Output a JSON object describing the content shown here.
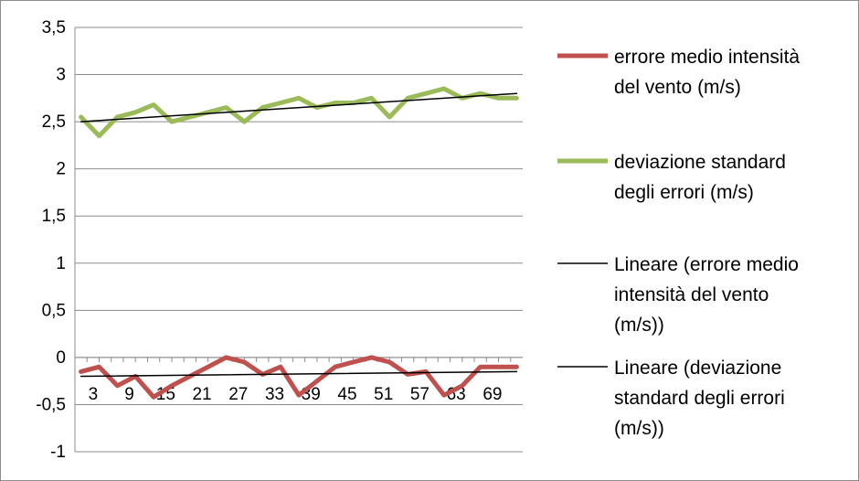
{
  "chart_data": {
    "type": "line",
    "title": "",
    "xlabel": "",
    "ylabel": "",
    "x": [
      1,
      3,
      5,
      7,
      9,
      11,
      13,
      15,
      17,
      19,
      21,
      23,
      25,
      27,
      29,
      31,
      33,
      35,
      37,
      39,
      41,
      43,
      45,
      47,
      49,
      51,
      53,
      55,
      57,
      59,
      61,
      63,
      65,
      67,
      69,
      71,
      73
    ],
    "x_tick_labels": [
      "3",
      "9",
      "15",
      "21",
      "27",
      "33",
      "39",
      "45",
      "51",
      "57",
      "63",
      "69"
    ],
    "x_tick_values": [
      3,
      9,
      15,
      21,
      27,
      33,
      39,
      45,
      51,
      57,
      63,
      69
    ],
    "y_tick_labels": [
      "3,5",
      "3",
      "2,5",
      "2",
      "1,5",
      "1",
      "0,5",
      "0",
      "-0,5",
      "-1"
    ],
    "ylim": [
      -1,
      3.5
    ],
    "y_step": 0.5,
    "grid": true,
    "legend_position": "right",
    "series": [
      {
        "name": "errore medio intensità del vento (m/s)",
        "legend_lines": [
          "errore medio intensità",
          "del vento (m/s)"
        ],
        "color": "#c0504d",
        "style": "thick",
        "x": [
          1,
          4,
          7,
          10,
          13,
          16,
          19,
          22,
          25,
          28,
          31,
          34,
          37,
          40,
          43,
          46,
          49,
          52,
          55,
          58,
          61,
          64,
          67,
          70,
          73
        ],
        "values": [
          -0.15,
          -0.1,
          -0.3,
          -0.2,
          -0.42,
          -0.3,
          -0.2,
          -0.1,
          0.0,
          -0.05,
          -0.18,
          -0.1,
          -0.4,
          -0.25,
          -0.1,
          -0.05,
          0.0,
          -0.05,
          -0.18,
          -0.15,
          -0.4,
          -0.3,
          -0.1,
          -0.1,
          -0.1
        ]
      },
      {
        "name": "deviazione standard degli errori (m/s)",
        "legend_lines": [
          "deviazione standard",
          "degli errori (m/s)"
        ],
        "color": "#9bbb59",
        "style": "thick",
        "x": [
          1,
          4,
          7,
          10,
          13,
          16,
          19,
          22,
          25,
          28,
          31,
          34,
          37,
          40,
          43,
          46,
          49,
          52,
          55,
          58,
          61,
          64,
          67,
          70,
          73
        ],
        "values": [
          2.55,
          2.35,
          2.55,
          2.6,
          2.68,
          2.5,
          2.55,
          2.6,
          2.65,
          2.5,
          2.65,
          2.7,
          2.75,
          2.65,
          2.7,
          2.7,
          2.75,
          2.55,
          2.75,
          2.8,
          2.85,
          2.75,
          2.8,
          2.75,
          2.75
        ]
      },
      {
        "name": "Lineare (errore medio intensità del vento (m/s))",
        "legend_lines": [
          "Lineare (errore medio",
          "intensità del vento",
          "(m/s))"
        ],
        "color": "#000000",
        "style": "thin",
        "x": [
          1,
          73
        ],
        "values": [
          -0.2,
          -0.15
        ]
      },
      {
        "name": "Lineare (deviazione standard degli errori (m/s))",
        "legend_lines": [
          "Lineare (deviazione",
          "standard degli errori",
          "(m/s))"
        ],
        "color": "#000000",
        "style": "thin",
        "x": [
          1,
          73
        ],
        "values": [
          2.5,
          2.8
        ]
      }
    ]
  }
}
